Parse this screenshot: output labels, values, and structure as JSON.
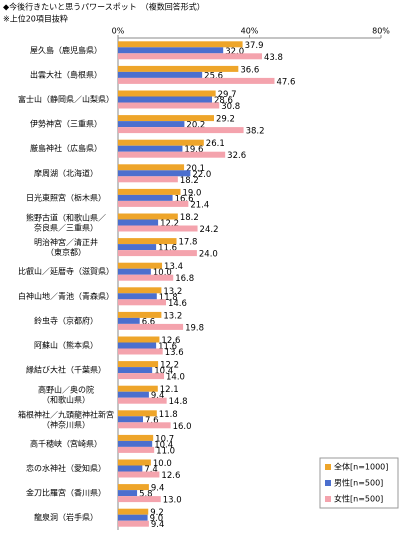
{
  "chart_data": {
    "type": "bar",
    "orientation": "horizontal",
    "title": "◆今後行きたいと思うパワースポット　（複数回答形式）",
    "subtitle": "※上位20項目抜粋",
    "categories": [
      "屋久島（鹿児島県）",
      "出雲大社（島根県）",
      "富士山（静岡県／山梨県）",
      "伊勢神宮（三重県）",
      "厳島神社（広島県）",
      "摩周湖（北海道）",
      "日光東照宮（栃木県）",
      "熊野古道（和歌山県／\n奈良県／三重県）",
      "明治神宮／清正井\n（東京都）",
      "比叡山／延暦寺（滋賀県）",
      "白神山地／青池（青森県）",
      "鈴虫寺（京都府）",
      "阿蘇山（熊本県）",
      "縁結び大社（千葉県）",
      "高野山／奥の院\n（和歌山県）",
      "箱根神社／九頭龍神社新宮\n（神奈川県）",
      "高千穂峡（宮崎県）",
      "恋の水神社（愛知県）",
      "金刀比羅宮（香川県）",
      "龍泉洞（岩手県）"
    ],
    "series": [
      {
        "name": "全体[n=1000]",
        "color": "#eea52a",
        "values": [
          37.9,
          36.6,
          29.7,
          29.2,
          26.1,
          20.1,
          19.0,
          18.2,
          17.8,
          13.4,
          13.2,
          13.2,
          12.6,
          12.2,
          12.1,
          11.8,
          10.7,
          10.0,
          9.4,
          9.2
        ],
        "value_labels": [
          "37.9",
          "36.6",
          "29.7",
          "29.2",
          "26.1",
          "20.1",
          "19.0",
          "18.2",
          "17.8",
          "13.4",
          "13.2",
          "13.2",
          "12.6",
          "12.2",
          "12.1",
          "11.8",
          "10.7",
          "10.0",
          "9.4",
          "9.2"
        ]
      },
      {
        "name": "男性[n=500]",
        "color": "#4b6fce",
        "values": [
          32.0,
          25.6,
          28.6,
          20.2,
          19.6,
          22.0,
          16.6,
          12.2,
          11.6,
          10.0,
          11.8,
          6.6,
          11.6,
          10.4,
          9.4,
          7.6,
          10.4,
          7.4,
          5.8,
          9.0
        ],
        "value_labels": [
          "32.0",
          "25.6",
          "28.6",
          "20.2",
          "19.6",
          "22.0",
          "16.6",
          "12.2",
          "11.6",
          "10.0",
          "11.8",
          "6.6",
          "11.6",
          "10.4",
          "9.4",
          "7.6",
          "10.4",
          "7.4",
          "5.8",
          "9.0"
        ]
      },
      {
        "name": "女性[n=500]",
        "color": "#f4a3ad",
        "values": [
          43.8,
          47.6,
          30.8,
          38.2,
          32.6,
          18.2,
          21.4,
          24.2,
          24.0,
          16.8,
          14.6,
          19.8,
          13.6,
          14.0,
          14.8,
          16.0,
          11.0,
          12.6,
          13.0,
          9.4
        ],
        "value_labels": [
          "43.8",
          "47.6",
          "30.8",
          "38.2",
          "32.6",
          "18.2",
          "21.4",
          "24.2",
          "24.0",
          "16.8",
          "14.6",
          "19.8",
          "13.6",
          "14.0",
          "14.8",
          "16.0",
          "11.0",
          "12.6",
          "13.0",
          "9.4"
        ]
      }
    ],
    "xlim": [
      0,
      80
    ],
    "xticks": [
      {
        "value": 0,
        "label": "0%"
      },
      {
        "value": 40,
        "label": "40%"
      },
      {
        "value": 80,
        "label": "80%"
      }
    ],
    "grid": false,
    "legend": "bottom-right"
  }
}
